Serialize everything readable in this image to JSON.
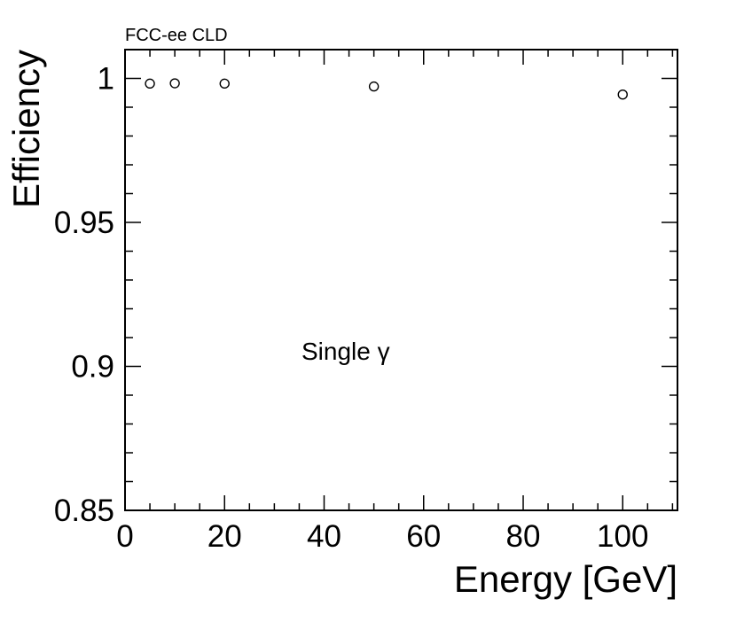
{
  "chart_data": {
    "type": "scatter",
    "header": "FCC-ee CLD",
    "xlabel": "Energy [GeV]",
    "ylabel": "Efficiency",
    "xlim": [
      0,
      111
    ],
    "ylim": [
      0.85,
      1.01
    ],
    "xticks": [
      0,
      20,
      40,
      60,
      80,
      100
    ],
    "xtick_labels": [
      "0",
      "20",
      "40",
      "60",
      "80",
      "100"
    ],
    "yticks": [
      0.85,
      0.9,
      0.95,
      1.0
    ],
    "ytick_labels": [
      "0.85",
      "0.9",
      "0.95",
      "1"
    ],
    "annotation": "Single γ",
    "grid": false,
    "marker": "open-circle",
    "series": [
      {
        "x": [
          5,
          10,
          20,
          50,
          100
        ],
        "y": [
          0.9982,
          0.9983,
          0.9982,
          0.9972,
          0.9944
        ]
      }
    ]
  }
}
